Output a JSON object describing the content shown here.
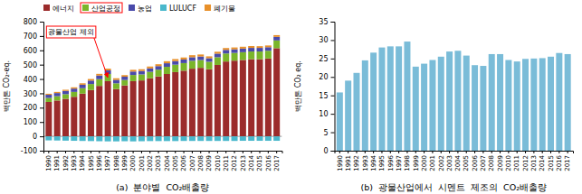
{
  "chart_data": [
    {
      "type": "bar",
      "stacked": true,
      "title": "(a)  분야별  CO₂배출량",
      "categories": [
        "1990",
        "1991",
        "1992",
        "1993",
        "1994",
        "1995",
        "1996",
        "1997",
        "1998",
        "1999",
        "2000",
        "2001",
        "2002",
        "2003",
        "2004",
        "2005",
        "2006",
        "2007",
        "2008",
        "2009",
        "2010",
        "2011",
        "2012",
        "2013",
        "2014",
        "2015",
        "2016",
        "2017"
      ],
      "series": [
        {
          "name": "에너지",
          "color": "#9b2b2b",
          "values": [
            240,
            250,
            262,
            276,
            298,
            323,
            352,
            385,
            330,
            355,
            385,
            390,
            405,
            418,
            435,
            448,
            458,
            472,
            478,
            468,
            498,
            522,
            528,
            533,
            538,
            538,
            543,
            615
          ]
        },
        {
          "name": "산업공정",
          "color": "#7ab52a",
          "values": [
            28,
            30,
            32,
            34,
            38,
            42,
            47,
            50,
            40,
            38,
            43,
            42,
            45,
            47,
            50,
            52,
            53,
            55,
            54,
            52,
            54,
            56,
            54,
            54,
            54,
            54,
            54,
            54
          ]
        },
        {
          "name": "농업",
          "color": "#4a4aaa",
          "values": [
            22,
            22,
            23,
            23,
            24,
            24,
            25,
            25,
            24,
            23,
            24,
            24,
            24,
            25,
            25,
            25,
            25,
            25,
            25,
            25,
            25,
            25,
            25,
            25,
            25,
            25,
            25,
            25
          ]
        },
        {
          "name": "LULUCF",
          "color": "#4ab8cc",
          "values": [
            -28,
            -29,
            -30,
            -31,
            -32,
            -33,
            -34,
            -35,
            -35,
            -34,
            -35,
            -34,
            -33,
            -33,
            -33,
            -33,
            -32,
            -32,
            -32,
            -32,
            -32,
            -32,
            -32,
            -31,
            -31,
            -31,
            -31,
            -31
          ]
        },
        {
          "name": "폐기물",
          "color": "#e8902a",
          "values": [
            7,
            8,
            8,
            9,
            10,
            11,
            12,
            12,
            11,
            11,
            12,
            12,
            13,
            13,
            14,
            14,
            14,
            14,
            14,
            13,
            13,
            13,
            13,
            13,
            13,
            12,
            12,
            12
          ]
        }
      ],
      "ylabel": "백만톤 CO₂-eq.",
      "ylim": [
        -100,
        800
      ],
      "yticks": [
        -100,
        0,
        100,
        200,
        300,
        400,
        500,
        600,
        700,
        800
      ],
      "legend": "top",
      "annotations": [
        {
          "text": "광물산업 제외",
          "x": "1997",
          "series": "산업공정"
        }
      ]
    },
    {
      "type": "bar",
      "title": "(b)  광물산업에서  시멘트  제조의  CO₂배출량",
      "categories": [
        "1990",
        "1991",
        "1992",
        "1993",
        "1994",
        "1995",
        "1996",
        "1997",
        "1998",
        "1999",
        "2000",
        "2001",
        "2002",
        "2003",
        "2004",
        "2005",
        "2006",
        "2007",
        "2008",
        "2009",
        "2010",
        "2011",
        "2012",
        "2013",
        "2014",
        "2015",
        "2016",
        "2017"
      ],
      "values": [
        15.8,
        19.0,
        21.1,
        24.5,
        26.6,
        28.0,
        28.3,
        28.3,
        29.6,
        22.8,
        23.6,
        24.6,
        25.5,
        26.9,
        27.1,
        25.8,
        23.2,
        23.0,
        26.2,
        26.2,
        24.6,
        24.2,
        24.9,
        25.0,
        25.1,
        25.5,
        26.5,
        26.2
      ],
      "color": "#7abcd8",
      "ylabel": "백만톤 CO₂ eq.",
      "ylim": [
        0,
        35
      ],
      "yticks": [
        0,
        5,
        10,
        15,
        20,
        25,
        30,
        35
      ]
    }
  ]
}
